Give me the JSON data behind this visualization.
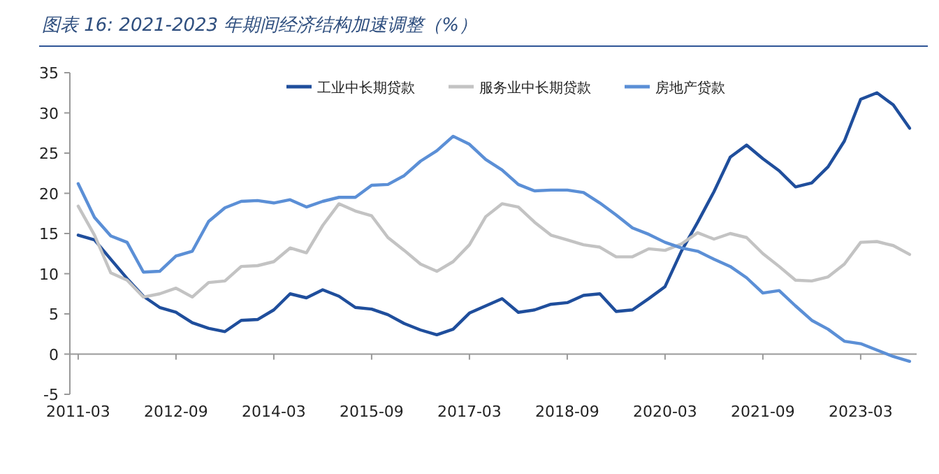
{
  "chart_data": {
    "type": "line",
    "title": "图表 16:  2021-2023 年期间经济结构加速调整（%）",
    "x": [
      "2011-03",
      "2011-06",
      "2011-09",
      "2011-12",
      "2012-03",
      "2012-06",
      "2012-09",
      "2012-12",
      "2013-03",
      "2013-06",
      "2013-09",
      "2013-12",
      "2014-03",
      "2014-06",
      "2014-09",
      "2014-12",
      "2015-03",
      "2015-06",
      "2015-09",
      "2015-12",
      "2016-03",
      "2016-06",
      "2016-09",
      "2016-12",
      "2017-03",
      "2017-06",
      "2017-09",
      "2017-12",
      "2018-03",
      "2018-06",
      "2018-09",
      "2018-12",
      "2019-03",
      "2019-06",
      "2019-09",
      "2019-12",
      "2020-03",
      "2020-06",
      "2020-09",
      "2020-12",
      "2021-03",
      "2021-06",
      "2021-09",
      "2021-12",
      "2022-03",
      "2022-06",
      "2022-09",
      "2022-12",
      "2023-03",
      "2023-06",
      "2023-09",
      "2023-12"
    ],
    "series": [
      {
        "name": "工业中长期贷款",
        "color": "#1f4e9c",
        "values": [
          14.8,
          14.2,
          11.8,
          9.4,
          7.2,
          5.8,
          5.2,
          3.9,
          3.2,
          2.8,
          4.2,
          4.3,
          5.5,
          7.5,
          7.0,
          8.0,
          7.2,
          5.8,
          5.6,
          4.9,
          3.8,
          3.0,
          2.4,
          3.1,
          5.1,
          6.0,
          6.9,
          5.2,
          5.5,
          6.2,
          6.4,
          7.3,
          7.5,
          5.3,
          5.5,
          6.9,
          8.4,
          12.8,
          16.4,
          20.2,
          24.5,
          26.0,
          24.3,
          22.8,
          20.8,
          21.3,
          23.3,
          26.5,
          31.7,
          32.5,
          31.0,
          28.1
        ]
      },
      {
        "name": "服务业中长期贷款",
        "color": "#c3c3c3",
        "values": [
          18.4,
          14.8,
          10.1,
          9.2,
          7.1,
          7.5,
          8.2,
          7.1,
          8.9,
          9.1,
          10.9,
          11.0,
          11.5,
          13.2,
          12.6,
          16.0,
          18.7,
          17.8,
          17.2,
          14.5,
          12.9,
          11.2,
          10.3,
          11.5,
          13.6,
          17.1,
          18.7,
          18.3,
          16.4,
          14.8,
          14.2,
          13.6,
          13.3,
          12.1,
          12.1,
          13.1,
          12.9,
          13.7,
          15.1,
          14.3,
          15.0,
          14.5,
          12.5,
          10.9,
          9.2,
          9.1,
          9.6,
          11.2,
          13.9,
          14.0,
          13.5,
          12.4
        ]
      },
      {
        "name": "房地产贷款",
        "color": "#5b8fd6",
        "values": [
          21.2,
          17.0,
          14.7,
          13.9,
          10.2,
          10.3,
          12.2,
          12.8,
          16.5,
          18.2,
          19.0,
          19.1,
          18.8,
          19.2,
          18.3,
          19.0,
          19.5,
          19.5,
          21.0,
          21.1,
          22.2,
          24.0,
          25.3,
          27.1,
          26.1,
          24.2,
          22.9,
          21.1,
          20.3,
          20.4,
          20.4,
          20.1,
          18.8,
          17.3,
          15.7,
          14.9,
          13.9,
          13.2,
          12.8,
          11.8,
          10.9,
          9.5,
          7.6,
          7.9,
          6.0,
          4.2,
          3.1,
          1.6,
          1.3,
          0.5,
          -0.3,
          -0.9
        ]
      }
    ],
    "xlim": [
      "2011-01-15",
      "2024-01-10"
    ],
    "xticks": [
      "2011-03",
      "2012-09",
      "2014-03",
      "2015-09",
      "2017-03",
      "2018-09",
      "2020-03",
      "2021-09",
      "2023-03"
    ],
    "ylim": [
      -5,
      35
    ],
    "yticks": [
      -5,
      0,
      5,
      10,
      15,
      20,
      25,
      30,
      35
    ],
    "legend": "top"
  }
}
